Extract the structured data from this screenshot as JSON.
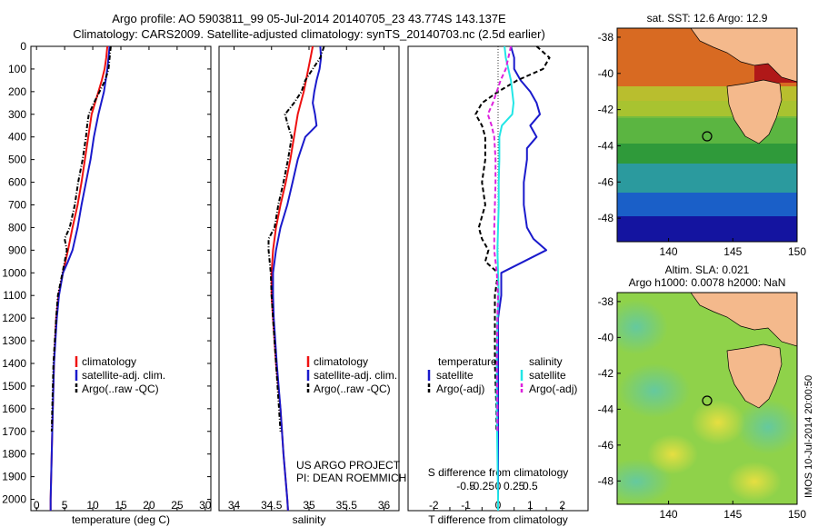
{
  "header": {
    "title_line1": "Argo profile: AO 5903811_99 05-Jul-2014 20140705_23 43.774S 143.137E",
    "title_line2": "Climatology: CARS2009. Satellite-adjusted climatology: synTS_20140703.nc (2.5d earlier)"
  },
  "colors": {
    "climatology": "#ee1111",
    "satellite": "#1a1acc",
    "argo": "#000000",
    "s_satellite": "#22e6e6",
    "s_argo": "#dd22dd",
    "land": "#f4b98c"
  },
  "legend": {
    "climatology": "climatology",
    "satellite": "satellite-adj. clim.",
    "argo": "Argo(..raw -QC)",
    "temperature": "temperature",
    "salinity": "salinity",
    "t_satellite": "satellite",
    "t_argo": "Argo(-adj)",
    "s_satellite": "satellite",
    "s_argo": "Argo(-adj)"
  },
  "annotations": {
    "project": "US ARGO PROJECT",
    "pi": "PI: DEAN ROEMMICH",
    "s_diff_label": "S difference from climatology",
    "stamp": "IMOS 10-Jul-2014 20:00:50"
  },
  "maps": {
    "sst_title": "sat. SST: 12.6  Argo: 12.9",
    "sla_title1": "Altim. SLA: 0.021",
    "sla_title2": "Argo h1000: 0.0078  h2000: NaN",
    "lat_ticks": [
      "-38",
      "-40",
      "-42",
      "-44",
      "-46",
      "-48"
    ],
    "lon_ticks": [
      "140",
      "145",
      "150"
    ],
    "float_position": {
      "lon": 143.137,
      "lat": -43.774
    }
  },
  "chart_data": [
    {
      "type": "line",
      "xlabel": "temperature (deg C)",
      "ylabel": "",
      "xlim": [
        -1,
        31
      ],
      "ylim": [
        2050,
        0
      ],
      "x_ticks": [
        "0",
        "5",
        "10",
        "15",
        "20",
        "25",
        "30"
      ],
      "y_ticks": [
        "0",
        "100",
        "200",
        "300",
        "400",
        "500",
        "600",
        "700",
        "800",
        "900",
        "1000",
        "1100",
        "1200",
        "1300",
        "1400",
        "1500",
        "1600",
        "1700",
        "1800",
        "1900",
        "2000"
      ],
      "series": [
        {
          "name": "climatology",
          "depth": [
            0,
            50,
            100,
            150,
            200,
            300,
            400,
            500,
            600,
            700,
            800,
            900,
            1000,
            1100,
            1200,
            1400,
            1600,
            1800,
            2000,
            2050
          ],
          "values": [
            12.6,
            12.4,
            12.1,
            11.6,
            11.0,
            9.8,
            9.2,
            8.6,
            8.0,
            7.3,
            6.4,
            5.6,
            4.7,
            3.9,
            3.5,
            3.1,
            2.9,
            2.7,
            2.5,
            2.5
          ]
        },
        {
          "name": "satellite-adj. clim.",
          "depth": [
            0,
            50,
            100,
            150,
            200,
            300,
            400,
            500,
            600,
            700,
            800,
            900,
            950,
            1000,
            1100,
            1200,
            1400,
            1600,
            1800,
            2000,
            2050
          ],
          "values": [
            13.0,
            12.8,
            12.6,
            12.3,
            12.0,
            11.0,
            10.2,
            9.6,
            8.8,
            8.0,
            7.3,
            6.4,
            5.6,
            4.7,
            4.0,
            3.6,
            3.1,
            2.9,
            2.7,
            2.5,
            2.5
          ]
        },
        {
          "name": "Argo(..raw -QC)",
          "depth": [
            0,
            50,
            100,
            150,
            200,
            250,
            300,
            350,
            400,
            500,
            600,
            700,
            800,
            850,
            900,
            1000,
            1100,
            1200,
            1400,
            1600,
            1700
          ],
          "values": [
            13.2,
            13.0,
            12.8,
            12.2,
            11.2,
            10.2,
            9.3,
            9.0,
            8.8,
            8.2,
            7.4,
            6.8,
            5.9,
            5.0,
            5.4,
            4.6,
            3.8,
            3.5,
            3.0,
            2.8,
            2.7
          ]
        }
      ]
    },
    {
      "type": "line",
      "xlabel": "salinity",
      "ylabel": "",
      "xlim": [
        33.8,
        36.2
      ],
      "ylim": [
        2050,
        0
      ],
      "x_ticks": [
        "34",
        "34.5",
        "35",
        "35.5",
        "36"
      ],
      "series": [
        {
          "name": "climatology",
          "depth": [
            0,
            50,
            100,
            150,
            200,
            250,
            300,
            400,
            500,
            600,
            700,
            800,
            900,
            1000,
            1100,
            1200,
            1400,
            1600,
            1800,
            2000,
            2050
          ],
          "values": [
            35.05,
            35.02,
            34.99,
            34.96,
            34.93,
            34.89,
            34.85,
            34.8,
            34.75,
            34.69,
            34.62,
            34.56,
            34.52,
            34.5,
            34.5,
            34.52,
            34.56,
            34.62,
            34.66,
            34.71,
            34.72
          ]
        },
        {
          "name": "satellite-adj. clim.",
          "depth": [
            0,
            50,
            100,
            150,
            200,
            250,
            300,
            350,
            400,
            450,
            500,
            600,
            700,
            800,
            900,
            1000,
            1100,
            1200,
            1400,
            1600,
            1800,
            2000,
            2050
          ],
          "values": [
            35.15,
            35.16,
            35.14,
            35.1,
            35.07,
            35.05,
            35.08,
            35.1,
            34.95,
            34.9,
            34.85,
            34.78,
            34.71,
            34.62,
            34.56,
            34.52,
            34.52,
            34.53,
            34.57,
            34.62,
            34.66,
            34.71,
            34.72
          ]
        },
        {
          "name": "Argo(..raw -QC)",
          "depth": [
            0,
            50,
            100,
            150,
            200,
            250,
            300,
            350,
            400,
            500,
            600,
            700,
            800,
            850,
            900,
            1000,
            1100,
            1200,
            1400,
            1600,
            1700
          ],
          "values": [
            35.2,
            35.15,
            35.05,
            34.95,
            34.9,
            34.8,
            34.68,
            34.72,
            34.77,
            34.72,
            34.66,
            34.59,
            34.54,
            34.46,
            34.46,
            34.49,
            34.5,
            34.52,
            34.56,
            34.6,
            34.62
          ]
        }
      ]
    },
    {
      "type": "line",
      "xlabel": "T difference from climatology",
      "ylabel": "",
      "xlim": [
        -2.8,
        2.8
      ],
      "ylim": [
        2050,
        0
      ],
      "x_ticks": [
        "-2",
        "-1.5",
        "-1",
        "-0.5",
        "0",
        "0.5",
        "1",
        "1.5",
        "2"
      ],
      "x2_label": "S difference from climatology",
      "x2_ticks": [
        "-0.5",
        "-0.25",
        "0",
        "0.25",
        "0.5"
      ],
      "series": [
        {
          "name": "temperature satellite",
          "depth": [
            0,
            50,
            100,
            150,
            200,
            250,
            300,
            350,
            400,
            450,
            500,
            600,
            700,
            800,
            850,
            900,
            950,
            1000,
            1100,
            1200,
            1400,
            1600,
            1800,
            2000,
            2050
          ],
          "values": [
            0.4,
            0.5,
            0.5,
            0.7,
            1.0,
            1.2,
            1.3,
            1.0,
            1.2,
            0.9,
            0.9,
            0.8,
            0.8,
            0.9,
            1.1,
            1.5,
            0.8,
            0.1,
            0.1,
            0.0,
            0.0,
            0.0,
            0.0,
            0.0,
            0.0
          ]
        },
        {
          "name": "temperature Argo(-adj)",
          "depth": [
            0,
            50,
            100,
            150,
            200,
            250,
            300,
            350,
            400,
            500,
            600,
            700,
            800,
            850,
            900,
            950,
            1000,
            1100,
            1200,
            1400,
            1600,
            1700
          ],
          "values": [
            1.2,
            1.6,
            1.4,
            0.6,
            0.0,
            -0.5,
            -0.7,
            -0.5,
            -0.4,
            -0.4,
            -0.5,
            -0.4,
            -0.6,
            -0.5,
            -0.3,
            -0.4,
            0.0,
            -0.1,
            -0.1,
            -0.1,
            -0.05,
            -0.05
          ]
        },
        {
          "name": "salinity satellite",
          "depth": [
            0,
            50,
            100,
            150,
            200,
            250,
            300,
            350,
            400,
            500,
            600,
            700,
            800,
            900,
            1000,
            1100,
            1200,
            1400,
            1600,
            1800,
            2000,
            2050
          ],
          "values": [
            0.1,
            0.12,
            0.16,
            0.2,
            0.22,
            0.24,
            0.22,
            0.06,
            0.02,
            0.02,
            0.01,
            0.01,
            0.0,
            -0.01,
            0.0,
            0.01,
            -0.01,
            -0.02,
            -0.02,
            -0.01,
            0.0,
            0.0
          ]
        },
        {
          "name": "salinity Argo(-adj)",
          "depth": [
            0,
            50,
            100,
            150,
            200,
            250,
            300,
            350,
            400,
            500,
            600,
            700,
            800,
            900,
            1000,
            1100,
            1200,
            1400,
            1600,
            1700
          ],
          "values": [
            0.2,
            0.16,
            0.12,
            0.04,
            -0.02,
            -0.08,
            -0.16,
            -0.1,
            -0.06,
            -0.04,
            -0.04,
            -0.05,
            -0.06,
            -0.06,
            -0.02,
            0.0,
            -0.01,
            -0.02,
            -0.01,
            -0.01
          ]
        }
      ]
    }
  ]
}
